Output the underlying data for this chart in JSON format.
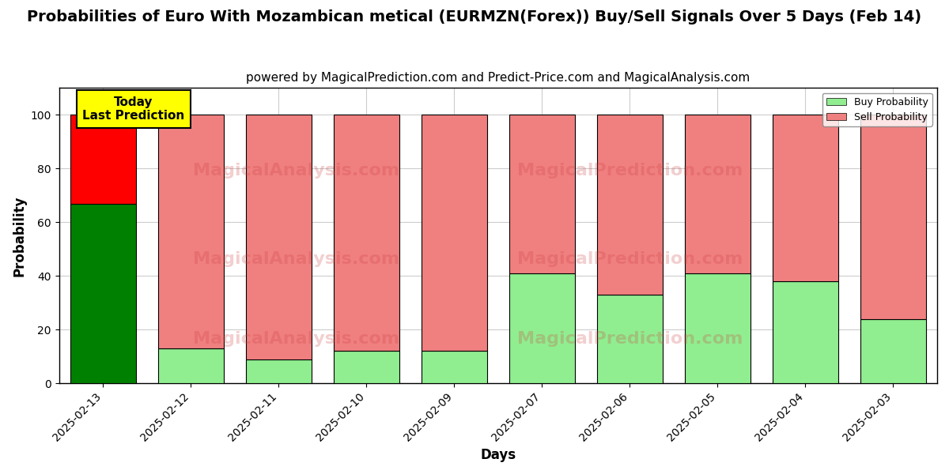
{
  "title": "Probabilities of Euro With Mozambican metical (EURMZN(Forex)) Buy/Sell Signals Over 5 Days (Feb 14)",
  "subtitle": "powered by MagicalPrediction.com and Predict-Price.com and MagicalAnalysis.com",
  "xlabel": "Days",
  "ylabel": "Probability",
  "categories": [
    "2025-02-13",
    "2025-02-12",
    "2025-02-11",
    "2025-02-10",
    "2025-02-09",
    "2025-02-07",
    "2025-02-06",
    "2025-02-05",
    "2025-02-04",
    "2025-02-03"
  ],
  "buy_values": [
    67,
    13,
    9,
    12,
    12,
    41,
    33,
    41,
    38,
    24
  ],
  "sell_values": [
    33,
    87,
    91,
    88,
    88,
    59,
    67,
    59,
    62,
    76
  ],
  "today_buy_color": "#008000",
  "today_sell_color": "#ff0000",
  "buy_color": "#90EE90",
  "sell_color": "#F08080",
  "today_label_bg": "#ffff00",
  "today_label_text": "Today\nLast Prediction",
  "legend_buy": "Buy Probability",
  "legend_sell": "Sell Probability",
  "ylim": [
    0,
    110
  ],
  "dashed_line_y": 110,
  "background_color": "#ffffff",
  "grid_color": "#cccccc",
  "title_fontsize": 14,
  "subtitle_fontsize": 11,
  "axis_label_fontsize": 12,
  "tick_fontsize": 10,
  "figsize": [
    12,
    6
  ],
  "dpi": 100
}
